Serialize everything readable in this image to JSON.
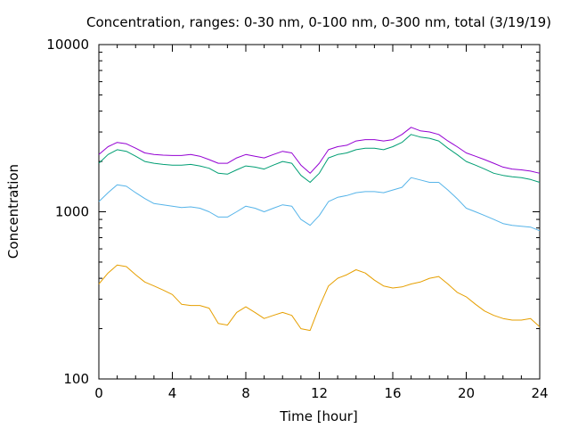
{
  "chart_data": {
    "type": "line",
    "title": "Concentration, ranges: 0-30 nm, 0-100 nm, 0-300 nm, total (3/19/19)",
    "xlabel": "Time [hour]",
    "ylabel": "Concentration",
    "xlim": [
      0,
      24
    ],
    "ylim": [
      100,
      10000
    ],
    "y_scale": "log",
    "grid": false,
    "x_ticks": [
      0,
      4,
      8,
      12,
      16,
      20,
      24
    ],
    "x_tick_labels": [
      "0",
      "4",
      "8",
      "12",
      "16",
      "20",
      "24"
    ],
    "y_ticks": [
      100,
      1000,
      10000
    ],
    "y_tick_labels": [
      "100",
      "1000",
      "10000"
    ],
    "x": [
      0,
      0.5,
      1,
      1.5,
      2,
      2.5,
      3,
      3.5,
      4,
      4.5,
      5,
      5.5,
      6,
      6.5,
      7,
      7.5,
      8,
      8.5,
      9,
      9.5,
      10,
      10.5,
      11,
      11.5,
      12,
      12.5,
      13,
      13.5,
      14,
      14.5,
      15,
      15.5,
      16,
      16.5,
      17,
      17.5,
      18,
      18.5,
      19,
      19.5,
      20,
      20.5,
      21,
      21.5,
      22,
      22.5,
      23,
      23.5,
      24
    ],
    "series": [
      {
        "color": "#e69f00",
        "values": [
          370,
          430,
          480,
          470,
          420,
          380,
          360,
          340,
          320,
          280,
          275,
          275,
          265,
          215,
          210,
          250,
          270,
          250,
          230,
          240,
          250,
          240,
          200,
          195,
          270,
          360,
          400,
          420,
          450,
          430,
          390,
          360,
          350,
          355,
          370,
          380,
          400,
          410,
          370,
          330,
          310,
          280,
          255,
          240,
          230,
          225,
          225,
          230,
          205
        ]
      },
      {
        "color": "#56b4e9",
        "values": [
          1150,
          1300,
          1450,
          1420,
          1300,
          1200,
          1120,
          1100,
          1080,
          1060,
          1070,
          1050,
          1000,
          930,
          930,
          1000,
          1080,
          1050,
          1000,
          1050,
          1100,
          1080,
          900,
          830,
          950,
          1150,
          1220,
          1250,
          1300,
          1320,
          1320,
          1300,
          1350,
          1400,
          1600,
          1550,
          1500,
          1500,
          1350,
          1200,
          1050,
          1000,
          950,
          900,
          850,
          830,
          820,
          810,
          770
        ]
      },
      {
        "color": "#009e73",
        "values": [
          1950,
          2200,
          2350,
          2300,
          2150,
          2000,
          1950,
          1920,
          1900,
          1900,
          1920,
          1880,
          1820,
          1700,
          1680,
          1780,
          1880,
          1850,
          1800,
          1900,
          2000,
          1950,
          1650,
          1500,
          1700,
          2100,
          2200,
          2250,
          2350,
          2400,
          2400,
          2350,
          2450,
          2600,
          2900,
          2800,
          2750,
          2650,
          2400,
          2200,
          2000,
          1900,
          1800,
          1700,
          1650,
          1620,
          1600,
          1560,
          1500
        ]
      },
      {
        "color": "#9400d3",
        "values": [
          2200,
          2450,
          2600,
          2550,
          2400,
          2250,
          2200,
          2180,
          2170,
          2170,
          2200,
          2150,
          2050,
          1950,
          1950,
          2100,
          2200,
          2150,
          2100,
          2200,
          2300,
          2250,
          1900,
          1700,
          1950,
          2350,
          2450,
          2500,
          2650,
          2700,
          2700,
          2650,
          2700,
          2900,
          3200,
          3050,
          3000,
          2900,
          2650,
          2450,
          2250,
          2150,
          2050,
          1950,
          1850,
          1800,
          1780,
          1750,
          1700
        ]
      }
    ]
  }
}
